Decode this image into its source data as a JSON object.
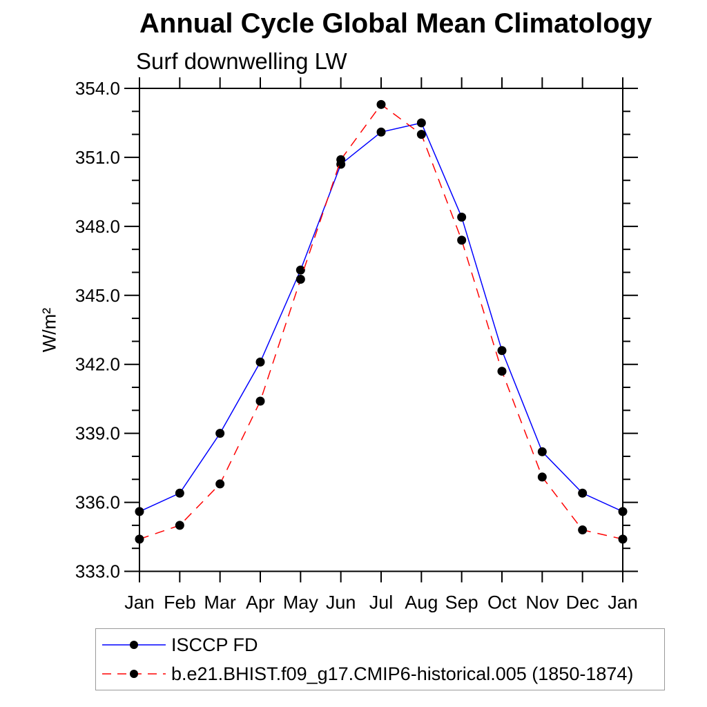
{
  "chart_data": {
    "type": "line",
    "title": "Annual Cycle Global Mean Climatology",
    "subtitle": "Surf downwelling LW",
    "ylabel": "W/m²",
    "xlabel": "",
    "categories": [
      "Jan",
      "Feb",
      "Mar",
      "Apr",
      "May",
      "Jun",
      "Jul",
      "Aug",
      "Sep",
      "Oct",
      "Nov",
      "Dec",
      "Jan"
    ],
    "ylim": [
      333.0,
      354.0
    ],
    "ytick_major_step": 3.0,
    "ytick_minor_step": 1.0,
    "ytick_labels": [
      "354.0",
      "351.0",
      "348.0",
      "345.0",
      "342.0",
      "339.0",
      "336.0",
      "333.0"
    ],
    "grid": false,
    "legend_position": "bottom-left-box",
    "axis_color": "#000000",
    "marker_color": "#000000",
    "series": [
      {
        "name": "ISCCP FD",
        "color": "#0000ff",
        "style": "solid",
        "marker": "circle",
        "values": [
          335.6,
          336.4,
          339.0,
          342.1,
          346.1,
          350.7,
          352.1,
          352.5,
          348.4,
          342.6,
          338.2,
          336.4,
          335.6
        ]
      },
      {
        "name": "b.e21.BHIST.f09_g17.CMIP6-historical.005 (1850-1874)",
        "color": "#ff0000",
        "style": "dashed",
        "marker": "circle",
        "values": [
          334.4,
          335.0,
          336.8,
          340.4,
          345.7,
          350.9,
          353.3,
          352.0,
          347.4,
          341.7,
          337.1,
          334.8,
          334.4
        ]
      }
    ]
  }
}
